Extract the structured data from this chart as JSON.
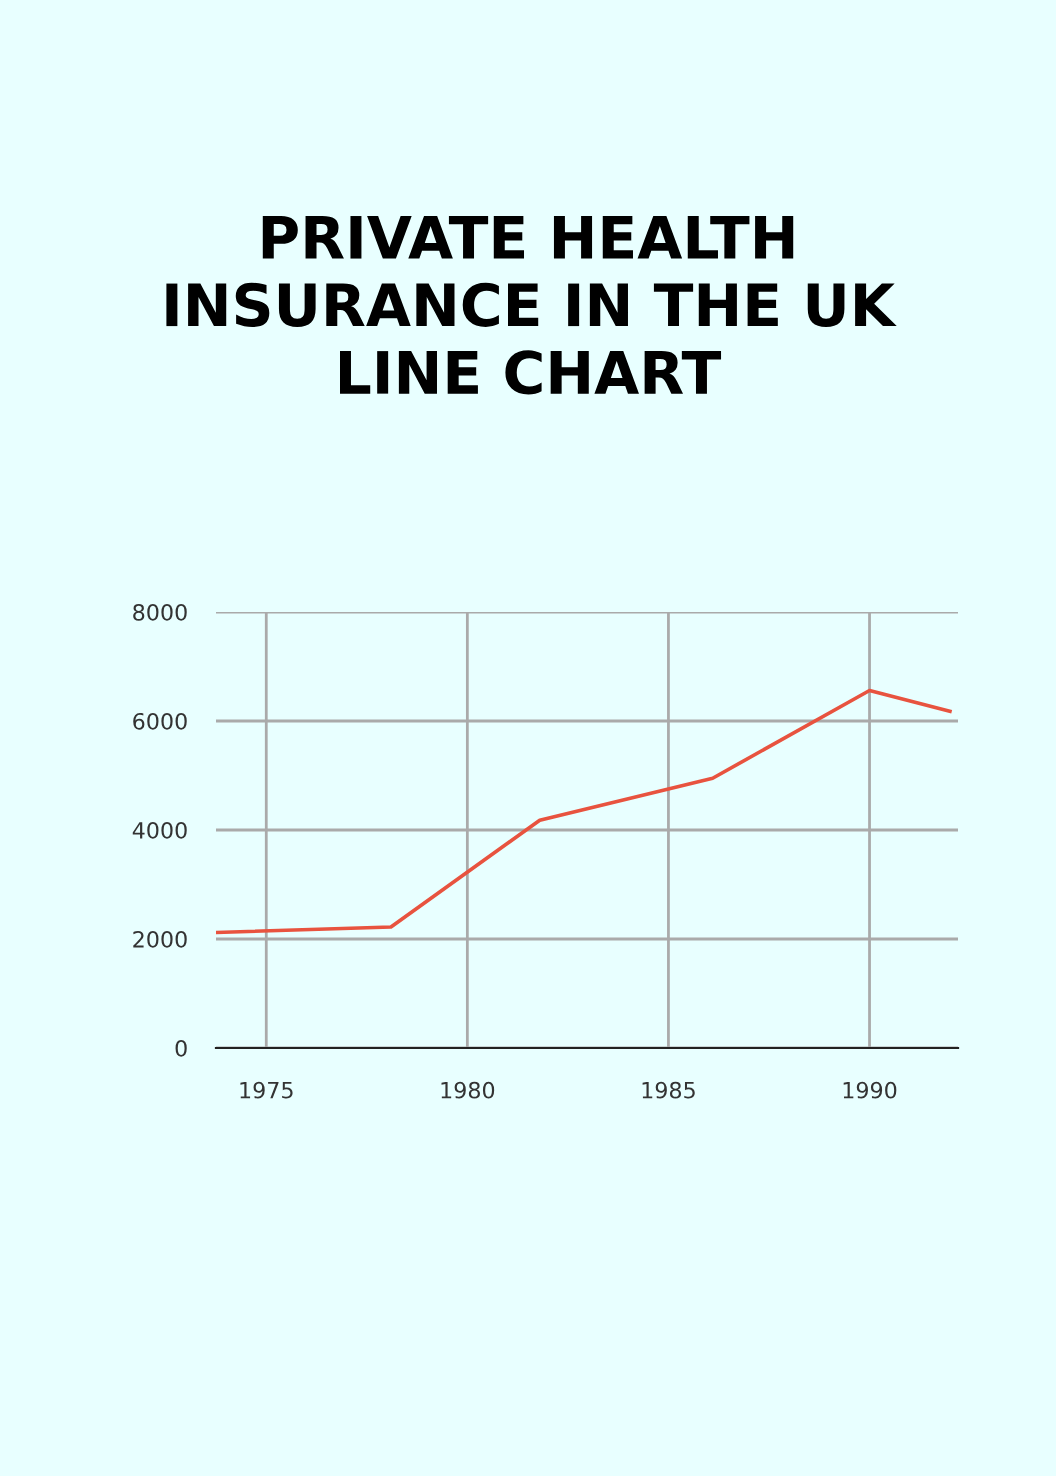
{
  "chart_data": {
    "type": "line",
    "title": "PRIVATE HEALTH\nINSURANCE IN THE UK\nLINE CHART",
    "x": [
      1973.75,
      1978.1,
      1981.8,
      1986.1,
      1990,
      1992
    ],
    "series": [
      {
        "color": "#e8533f",
        "values": [
          2120,
          2220,
          4180,
          4950,
          6560,
          6180
        ]
      }
    ],
    "xlim": [
      1973.75,
      1992.2
    ],
    "xticks": [
      1975,
      1980,
      1985,
      1990
    ],
    "ylim": [
      0,
      8000
    ],
    "yticks": [
      0,
      2000,
      4000,
      6000,
      8000
    ],
    "grid": true
  }
}
